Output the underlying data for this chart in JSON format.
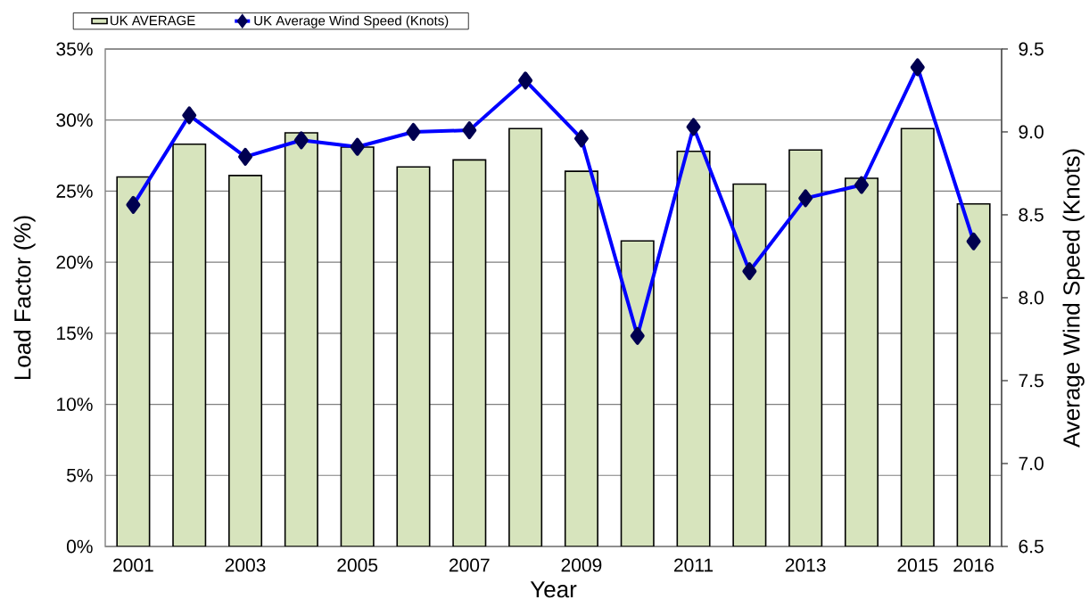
{
  "chart_data": {
    "type": "bar",
    "xlabel": "Year",
    "ylabel": "Load Factor (%)",
    "y2label": "Average Wind Speed (Knots)",
    "categories": [
      "2001",
      null,
      "2003",
      null,
      "2005",
      null,
      "2007",
      null,
      "2009",
      null,
      "2011",
      null,
      "2013",
      null,
      "2015",
      "2016"
    ],
    "series": [
      {
        "name": "UK AVERAGE",
        "color": "#d7e4bd",
        "values": [
          26.0,
          28.3,
          26.1,
          29.1,
          28.1,
          26.7,
          27.2,
          29.4,
          26.4,
          21.5,
          27.8,
          25.5,
          27.9,
          25.9,
          29.4,
          24.1
        ]
      },
      {
        "name": "UK Average Wind Speed (Knots)",
        "type": "line",
        "axis": "y2",
        "color": "#0000ff",
        "marker": "diamond",
        "values": [
          8.56,
          9.1,
          8.85,
          8.95,
          8.91,
          9.0,
          9.01,
          9.31,
          8.96,
          7.77,
          9.03,
          8.16,
          8.6,
          8.68,
          9.39,
          8.34
        ]
      }
    ],
    "ylim": [
      0,
      35
    ],
    "yticks": [
      {
        "value": 0,
        "label": "0%"
      },
      {
        "value": 5,
        "label": "5%"
      },
      {
        "value": 10,
        "label": "10%"
      },
      {
        "value": 15,
        "label": "15%"
      },
      {
        "value": 20,
        "label": "20%"
      },
      {
        "value": 25,
        "label": "25%"
      },
      {
        "value": 30,
        "label": "30%"
      },
      {
        "value": 35,
        "label": "35%"
      }
    ],
    "y2lim": [
      6.5,
      9.5
    ],
    "y2ticks": [
      6.5,
      {
        "value": 7,
        "label": "7.0"
      },
      7.5,
      {
        "value": 8,
        "label": "8.0"
      },
      8.5,
      {
        "value": 9,
        "label": "9.0"
      },
      9.5
    ],
    "grid": "y",
    "legend": "top"
  }
}
